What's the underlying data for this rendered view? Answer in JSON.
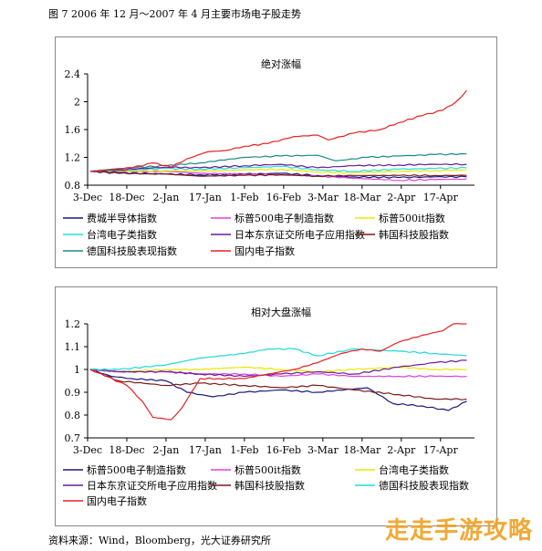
{
  "caption": "图 7 2006 年 12 月～2007 年 4 月主要市场电子股走势",
  "source": "资料来源：Wind，Bloomberg，光大证券研究所",
  "watermark": "走走手游攻略",
  "chart_data": [
    {
      "type": "line",
      "title": "绝对涨幅",
      "xlabel": "",
      "ylabel": "",
      "ylim": [
        0.8,
        2.4
      ],
      "yticks": [
        "0.8",
        "1.2",
        "1.6",
        "2",
        "2.4"
      ],
      "xlim": [
        "2006-12-03",
        "2007-04-30"
      ],
      "xticks": [
        {
          "date": "2006-12-03",
          "label": "3-Dec"
        },
        {
          "date": "2006-12-18",
          "label": "18-Dec"
        },
        {
          "date": "2007-01-02",
          "label": "2-Jan"
        },
        {
          "date": "2007-01-17",
          "label": "17-Jan"
        },
        {
          "date": "2007-02-01",
          "label": "1-Feb"
        },
        {
          "date": "2007-02-16",
          "label": "16-Feb"
        },
        {
          "date": "2007-03-03",
          "label": "3-Mar"
        },
        {
          "date": "2007-03-18",
          "label": "18-Mar"
        },
        {
          "date": "2007-04-02",
          "label": "2-Apr"
        },
        {
          "date": "2007-04-17",
          "label": "17-Apr"
        }
      ],
      "legend_columns": 3,
      "series": [
        {
          "name": "费城半导体指数",
          "color": "#1a1a7a",
          "points": [
            [
              "2006-12-04",
              1.0
            ],
            [
              "2006-12-15",
              0.97
            ],
            [
              "2007-01-02",
              0.96
            ],
            [
              "2007-01-15",
              0.95
            ],
            [
              "2007-02-01",
              0.96
            ],
            [
              "2007-02-15",
              0.97
            ],
            [
              "2007-03-01",
              0.94
            ],
            [
              "2007-03-15",
              0.92
            ],
            [
              "2007-04-01",
              0.91
            ],
            [
              "2007-04-15",
              0.92
            ],
            [
              "2007-04-27",
              0.92
            ]
          ]
        },
        {
          "name": "标普500电子制造指数",
          "color": "#e040e0",
          "points": [
            [
              "2006-12-04",
              1.0
            ],
            [
              "2006-12-15",
              0.99
            ],
            [
              "2007-01-02",
              1.0
            ],
            [
              "2007-01-15",
              0.97
            ],
            [
              "2007-02-01",
              0.96
            ],
            [
              "2007-02-15",
              0.95
            ],
            [
              "2007-03-01",
              0.93
            ],
            [
              "2007-03-15",
              0.9
            ],
            [
              "2007-04-01",
              0.87
            ],
            [
              "2007-04-15",
              0.88
            ],
            [
              "2007-04-27",
              0.89
            ]
          ]
        },
        {
          "name": "标普500it指数",
          "color": "#e8e800",
          "points": [
            [
              "2006-12-04",
              1.0
            ],
            [
              "2006-12-15",
              1.0
            ],
            [
              "2007-01-02",
              1.01
            ],
            [
              "2007-01-15",
              1.0
            ],
            [
              "2007-02-01",
              1.02
            ],
            [
              "2007-02-15",
              1.03
            ],
            [
              "2007-03-01",
              0.99
            ],
            [
              "2007-03-15",
              0.98
            ],
            [
              "2007-04-01",
              1.0
            ],
            [
              "2007-04-15",
              1.01
            ],
            [
              "2007-04-27",
              1.02
            ]
          ]
        },
        {
          "name": "台湾电子类指数",
          "color": "#20e0e0",
          "points": [
            [
              "2006-12-04",
              1.0
            ],
            [
              "2006-12-15",
              1.01
            ],
            [
              "2007-01-02",
              1.04
            ],
            [
              "2007-01-15",
              1.03
            ],
            [
              "2007-02-01",
              1.05
            ],
            [
              "2007-02-15",
              1.07
            ],
            [
              "2007-03-01",
              1.02
            ],
            [
              "2007-03-15",
              1.0
            ],
            [
              "2007-04-01",
              1.03
            ],
            [
              "2007-04-15",
              1.04
            ],
            [
              "2007-04-27",
              1.05
            ]
          ]
        },
        {
          "name": "日本东京证交所电子应用指数",
          "color": "#6a1a9a",
          "points": [
            [
              "2006-12-04",
              1.0
            ],
            [
              "2006-12-15",
              1.02
            ],
            [
              "2007-01-02",
              1.06
            ],
            [
              "2007-01-15",
              1.05
            ],
            [
              "2007-02-01",
              1.08
            ],
            [
              "2007-02-15",
              1.1
            ],
            [
              "2007-03-01",
              1.05
            ],
            [
              "2007-03-15",
              1.08
            ],
            [
              "2007-04-01",
              1.09
            ],
            [
              "2007-04-15",
              1.1
            ],
            [
              "2007-04-27",
              1.1
            ]
          ]
        },
        {
          "name": "韩国科技股指数",
          "color": "#7a1a1a",
          "points": [
            [
              "2006-12-04",
              1.0
            ],
            [
              "2006-12-15",
              0.98
            ],
            [
              "2007-01-02",
              0.96
            ],
            [
              "2007-01-15",
              0.93
            ],
            [
              "2007-02-01",
              0.94
            ],
            [
              "2007-02-15",
              0.95
            ],
            [
              "2007-03-01",
              0.93
            ],
            [
              "2007-03-15",
              0.94
            ],
            [
              "2007-04-01",
              0.94
            ],
            [
              "2007-04-15",
              0.94
            ],
            [
              "2007-04-27",
              0.94
            ]
          ]
        },
        {
          "name": "德国科技股表现指数",
          "color": "#1a8a8a",
          "points": [
            [
              "2006-12-04",
              1.0
            ],
            [
              "2006-12-15",
              1.04
            ],
            [
              "2007-01-02",
              1.08
            ],
            [
              "2007-01-15",
              1.12
            ],
            [
              "2007-02-01",
              1.2
            ],
            [
              "2007-02-15",
              1.22
            ],
            [
              "2007-03-01",
              1.23
            ],
            [
              "2007-03-08",
              1.15
            ],
            [
              "2007-03-20",
              1.2
            ],
            [
              "2007-04-01",
              1.22
            ],
            [
              "2007-04-15",
              1.24
            ],
            [
              "2007-04-27",
              1.25
            ]
          ]
        },
        {
          "name": "国内电子指数",
          "color": "#e82020",
          "points": [
            [
              "2006-12-04",
              1.0
            ],
            [
              "2006-12-12",
              1.02
            ],
            [
              "2006-12-20",
              1.05
            ],
            [
              "2006-12-28",
              1.12
            ],
            [
              "2007-01-04",
              1.06
            ],
            [
              "2007-01-10",
              1.18
            ],
            [
              "2007-01-18",
              1.28
            ],
            [
              "2007-01-25",
              1.3
            ],
            [
              "2007-02-01",
              1.36
            ],
            [
              "2007-02-10",
              1.4
            ],
            [
              "2007-02-20",
              1.5
            ],
            [
              "2007-03-01",
              1.52
            ],
            [
              "2007-03-05",
              1.45
            ],
            [
              "2007-03-15",
              1.55
            ],
            [
              "2007-03-25",
              1.6
            ],
            [
              "2007-04-01",
              1.7
            ],
            [
              "2007-04-10",
              1.8
            ],
            [
              "2007-04-18",
              1.88
            ],
            [
              "2007-04-23",
              2.0
            ],
            [
              "2007-04-27",
              2.16
            ]
          ]
        }
      ]
    },
    {
      "type": "line",
      "title": "相对大盘涨幅",
      "xlabel": "",
      "ylabel": "",
      "ylim": [
        0.7,
        1.2
      ],
      "yticks": [
        "0.7",
        "0.8",
        "0.9",
        "1",
        "1.1",
        "1.2"
      ],
      "xlim": [
        "2006-12-03",
        "2007-04-30"
      ],
      "xticks": [
        {
          "date": "2006-12-03",
          "label": "3-Dec"
        },
        {
          "date": "2006-12-18",
          "label": "18-Dec"
        },
        {
          "date": "2007-01-02",
          "label": "2-Jan"
        },
        {
          "date": "2007-01-17",
          "label": "17-Jan"
        },
        {
          "date": "2007-02-01",
          "label": "1-Feb"
        },
        {
          "date": "2007-02-16",
          "label": "16-Feb"
        },
        {
          "date": "2007-03-03",
          "label": "3-Mar"
        },
        {
          "date": "2007-03-18",
          "label": "18-Mar"
        },
        {
          "date": "2007-04-02",
          "label": "2-Apr"
        },
        {
          "date": "2007-04-17",
          "label": "17-Apr"
        }
      ],
      "legend_columns": 3,
      "series": [
        {
          "name": "标普500电子制造指数",
          "color": "#1a1a7a",
          "points": [
            [
              "2006-12-04",
              1.0
            ],
            [
              "2006-12-12",
              0.97
            ],
            [
              "2006-12-20",
              0.96
            ],
            [
              "2007-01-02",
              0.95
            ],
            [
              "2007-01-10",
              0.9
            ],
            [
              "2007-01-20",
              0.88
            ],
            [
              "2007-02-01",
              0.9
            ],
            [
              "2007-02-15",
              0.91
            ],
            [
              "2007-03-01",
              0.9
            ],
            [
              "2007-03-20",
              0.92
            ],
            [
              "2007-03-30",
              0.85
            ],
            [
              "2007-04-10",
              0.84
            ],
            [
              "2007-04-20",
              0.82
            ],
            [
              "2007-04-27",
              0.86
            ]
          ]
        },
        {
          "name": "标普500it指数",
          "color": "#e040e0",
          "points": [
            [
              "2006-12-04",
              1.0
            ],
            [
              "2006-12-15",
              0.99
            ],
            [
              "2007-01-02",
              0.99
            ],
            [
              "2007-01-15",
              0.98
            ],
            [
              "2007-02-01",
              0.98
            ],
            [
              "2007-02-15",
              0.97
            ],
            [
              "2007-03-01",
              0.98
            ],
            [
              "2007-03-15",
              0.97
            ],
            [
              "2007-04-01",
              0.97
            ],
            [
              "2007-04-15",
              0.97
            ],
            [
              "2007-04-27",
              0.97
            ]
          ]
        },
        {
          "name": "台湾电子类指数",
          "color": "#e8e800",
          "points": [
            [
              "2006-12-04",
              1.0
            ],
            [
              "2006-12-15",
              0.99
            ],
            [
              "2007-01-02",
              1.0
            ],
            [
              "2007-01-15",
              1.0
            ],
            [
              "2007-02-01",
              1.01
            ],
            [
              "2007-02-15",
              1.0
            ],
            [
              "2007-03-01",
              0.99
            ],
            [
              "2007-03-15",
              1.0
            ],
            [
              "2007-04-01",
              1.01
            ],
            [
              "2007-04-15",
              1.0
            ],
            [
              "2007-04-27",
              1.0
            ]
          ]
        },
        {
          "name": "日本东京证交所电子应用指数",
          "color": "#6a1a9a",
          "points": [
            [
              "2006-12-04",
              1.0
            ],
            [
              "2006-12-15",
              0.99
            ],
            [
              "2007-01-02",
              0.99
            ],
            [
              "2007-01-15",
              0.98
            ],
            [
              "2007-02-01",
              0.97
            ],
            [
              "2007-02-15",
              0.98
            ],
            [
              "2007-03-01",
              0.99
            ],
            [
              "2007-03-15",
              0.98
            ],
            [
              "2007-04-01",
              1.01
            ],
            [
              "2007-04-15",
              1.03
            ],
            [
              "2007-04-27",
              1.04
            ]
          ]
        },
        {
          "name": "韩国科技股指数",
          "color": "#7a1a1a",
          "points": [
            [
              "2006-12-04",
              1.0
            ],
            [
              "2006-12-15",
              0.95
            ],
            [
              "2007-01-02",
              0.93
            ],
            [
              "2007-01-15",
              0.94
            ],
            [
              "2007-02-01",
              0.93
            ],
            [
              "2007-02-15",
              0.92
            ],
            [
              "2007-03-01",
              0.93
            ],
            [
              "2007-03-15",
              0.91
            ],
            [
              "2007-04-01",
              0.89
            ],
            [
              "2007-04-15",
              0.87
            ],
            [
              "2007-04-27",
              0.87
            ]
          ]
        },
        {
          "name": "德国科技股表现指数",
          "color": "#20d8d8",
          "points": [
            [
              "2006-12-04",
              1.0
            ],
            [
              "2006-12-15",
              1.0
            ],
            [
              "2007-01-02",
              1.02
            ],
            [
              "2007-01-15",
              1.05
            ],
            [
              "2007-02-01",
              1.07
            ],
            [
              "2007-02-10",
              1.09
            ],
            [
              "2007-02-20",
              1.09
            ],
            [
              "2007-03-01",
              1.06
            ],
            [
              "2007-03-15",
              1.09
            ],
            [
              "2007-04-01",
              1.08
            ],
            [
              "2007-04-15",
              1.07
            ],
            [
              "2007-04-27",
              1.06
            ]
          ]
        },
        {
          "name": "国内电子指数",
          "color": "#e82020",
          "points": [
            [
              "2006-12-04",
              1.0
            ],
            [
              "2006-12-10",
              0.97
            ],
            [
              "2006-12-18",
              0.93
            ],
            [
              "2006-12-24",
              0.86
            ],
            [
              "2006-12-28",
              0.79
            ],
            [
              "2007-01-04",
              0.78
            ],
            [
              "2007-01-08",
              0.83
            ],
            [
              "2007-01-15",
              0.96
            ],
            [
              "2007-01-22",
              0.96
            ],
            [
              "2007-02-01",
              0.96
            ],
            [
              "2007-02-10",
              0.98
            ],
            [
              "2007-02-20",
              1.0
            ],
            [
              "2007-03-01",
              1.03
            ],
            [
              "2007-03-10",
              1.07
            ],
            [
              "2007-03-18",
              1.09
            ],
            [
              "2007-03-25",
              1.08
            ],
            [
              "2007-04-01",
              1.12
            ],
            [
              "2007-04-10",
              1.15
            ],
            [
              "2007-04-18",
              1.17
            ],
            [
              "2007-04-22",
              1.2
            ],
            [
              "2007-04-27",
              1.2
            ]
          ]
        }
      ]
    }
  ]
}
